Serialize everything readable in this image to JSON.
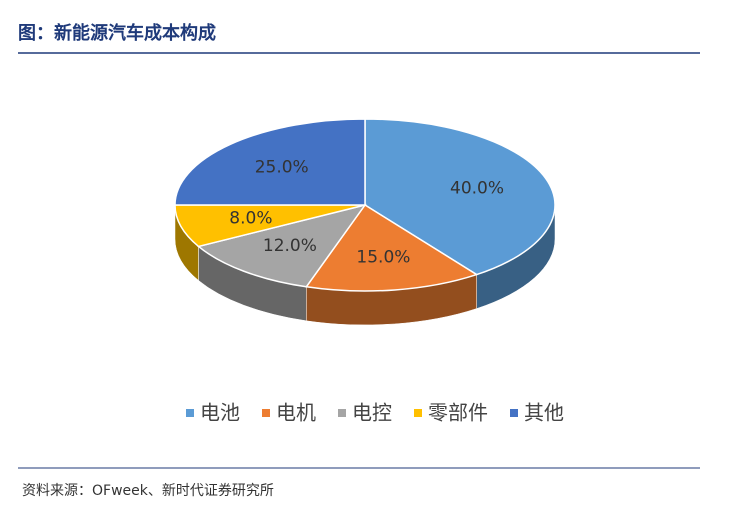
{
  "chart_data": {
    "type": "pie",
    "title": "图：新能源汽车成本构成",
    "source": "资料来源：OFweek、新时代证券研究所",
    "categories": [
      "电池",
      "电机",
      "电控",
      "零部件",
      "其他"
    ],
    "values": [
      40,
      15,
      12,
      8,
      25
    ],
    "value_labels": [
      "40.0%",
      "15.0%",
      "12.0%",
      "8.0%",
      "25.0%"
    ],
    "colors": [
      "#5b9bd5",
      "#ed7d31",
      "#a5a5a5",
      "#ffc000",
      "#4472c4"
    ],
    "legend": "bottom"
  }
}
